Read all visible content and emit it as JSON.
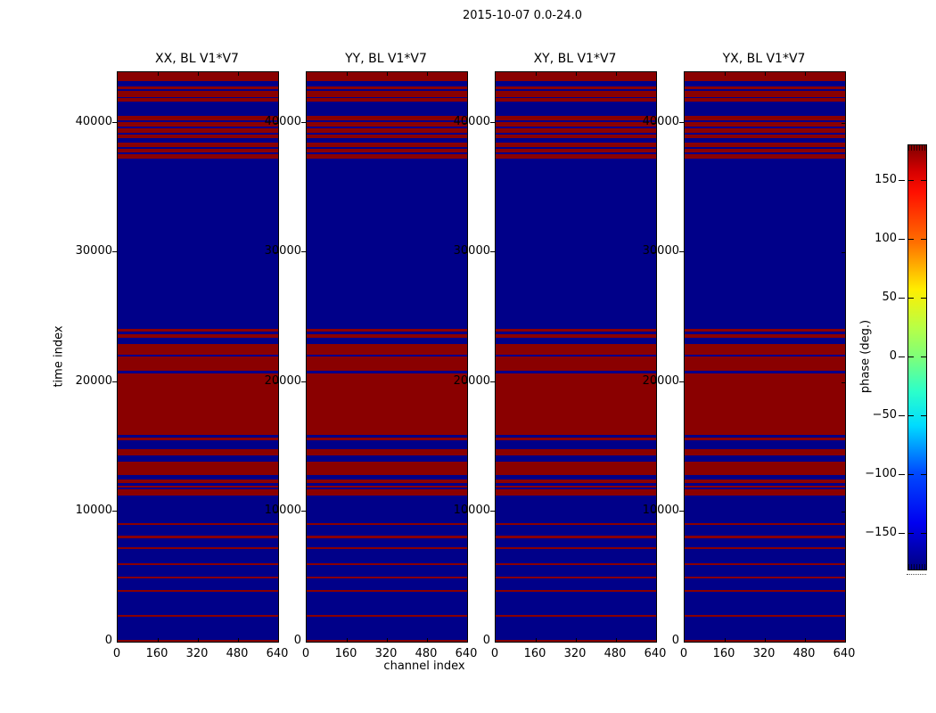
{
  "figure": {
    "suptitle": "2015-10-07 0.0-24.0",
    "xlabel": "channel index",
    "ylabel": "time index"
  },
  "colorbar": {
    "label": "phase (deg.)",
    "tick_labels": [
      "150",
      "100",
      "50",
      "0",
      "−50",
      "−100",
      "−150"
    ],
    "tick_values": [
      150,
      100,
      50,
      0,
      -50,
      -100,
      -150
    ],
    "range_deg": [
      -180,
      180
    ],
    "colormap": "jet"
  },
  "chart_data": {
    "type": "heatmap",
    "title": "2015-10-07 0.0-24.0",
    "xlabel": "channel index",
    "ylabel": "time index",
    "value_label": "phase (deg.)",
    "value_range": [
      -180,
      180
    ],
    "panel_titles": [
      "XX, BL V1*V7",
      "YY, BL V1*V7",
      "XY, BL V1*V7",
      "YX, BL V1*V7"
    ],
    "x_range": [
      0,
      640
    ],
    "y_range": [
      0,
      43900
    ],
    "x_tick_labels": [
      "0",
      "160",
      "320",
      "480",
      "640"
    ],
    "x_tick_values": [
      0,
      160,
      320,
      480,
      640
    ],
    "y_tick_labels": [
      "0",
      "10000",
      "20000",
      "30000",
      "40000"
    ],
    "y_tick_values": [
      0,
      10000,
      20000,
      30000,
      40000
    ],
    "grid": false,
    "legend": "colorbar-right",
    "colors": {
      "phase_high_red": "#8a0000",
      "phase_low_blue": "#000089"
    },
    "pattern_note": "All four panels show the identical pattern: dark-blue background (phase near -180 deg) with horizontal dark-red bands (phase near +180 deg) spanning all 640 channels over the listed time-index intervals.",
    "red_time_bands": [
      [
        0,
        160
      ],
      [
        1925,
        2060
      ],
      [
        3850,
        3990
      ],
      [
        4880,
        5020
      ],
      [
        5910,
        6050
      ],
      [
        7150,
        7290
      ],
      [
        7995,
        8180
      ],
      [
        9005,
        9140
      ],
      [
        11270,
        11720
      ],
      [
        11890,
        12050
      ],
      [
        12235,
        12510
      ],
      [
        12855,
        13885
      ],
      [
        14365,
        14845
      ],
      [
        15535,
        15740
      ],
      [
        15950,
        20710
      ],
      [
        20875,
        21975
      ],
      [
        22135,
        22980
      ],
      [
        23420,
        23690
      ],
      [
        23940,
        24080
      ],
      [
        37255,
        37550
      ],
      [
        37715,
        37990
      ],
      [
        38150,
        38445
      ],
      [
        38815,
        39090
      ],
      [
        39250,
        39545
      ],
      [
        39710,
        40025
      ],
      [
        40190,
        40550
      ],
      [
        41600,
        41875
      ],
      [
        42010,
        42425
      ],
      [
        42590,
        42820
      ],
      [
        43180,
        43900
      ]
    ]
  }
}
